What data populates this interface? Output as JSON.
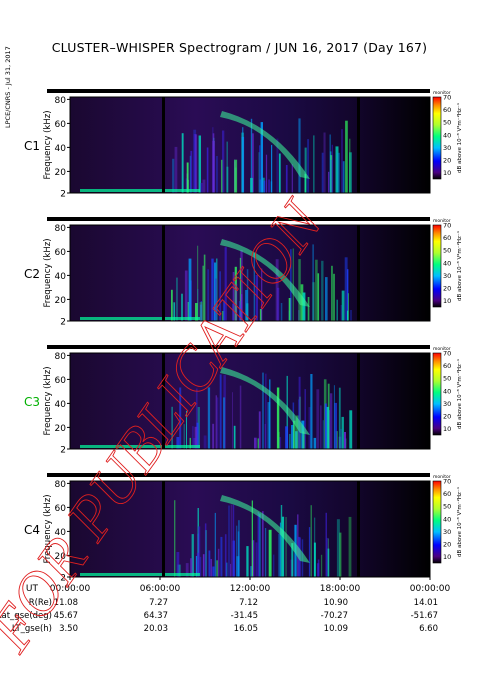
{
  "title": "CLUSTER–WHISPER Spectrogram / JUN 16, 2017 (Day 167)",
  "side_note": "LPCE/CNRS - Jul 31, 2017",
  "watermark": "FOR PUBLICATION",
  "chart_data": {
    "type": "heatmap",
    "ylabel": "Frequency (kHz)",
    "colorbar_label": "dB above 10⁻⁸ V²m⁻²Hz⁻¹",
    "colorbar_top_label": "monitor",
    "colorbar_ticks": [
      "70",
      "60",
      "50",
      "40",
      "30",
      "20",
      "10"
    ],
    "colorbar_range": [
      5,
      70
    ],
    "y_ticks": [
      "80",
      "60",
      "40",
      "20",
      "2"
    ],
    "ylim": [
      2,
      82
    ],
    "x_ticks": [
      "UT",
      "00:00:00",
      "06:00:00",
      "12:00:00",
      "18:00:00",
      "00:00:00"
    ],
    "panels": [
      {
        "name": "C1",
        "color": "#000000"
      },
      {
        "name": "C2",
        "color": "#000000"
      },
      {
        "name": "C3",
        "color": "#00b000"
      },
      {
        "name": "C4",
        "color": "#000000"
      }
    ],
    "ephemeris": [
      {
        "label": "R(Re)",
        "values": [
          "11.08",
          "7.27",
          "7.12",
          "10.90",
          "14.01"
        ]
      },
      {
        "label": "Lat_gse(deg)",
        "values": [
          "45.67",
          "64.37",
          "-31.45",
          "-70.27",
          "-51.67"
        ]
      },
      {
        "label": "LT_gse(h)",
        "values": [
          "3.50",
          "20.03",
          "16.05",
          "10.09",
          "6.60"
        ]
      }
    ]
  }
}
